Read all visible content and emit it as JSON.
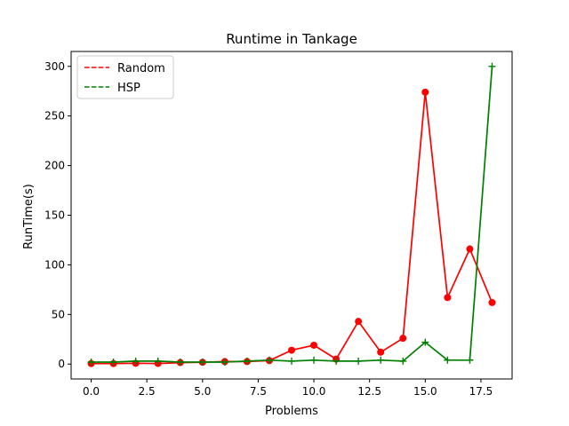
{
  "chart_data": {
    "type": "line",
    "title": "Runtime in Tankage",
    "xlabel": "Problems",
    "ylabel": "RunTime(s)",
    "xlim": [
      -0.9,
      18.9
    ],
    "ylim": [
      -15,
      315
    ],
    "xticks": [
      0.0,
      2.5,
      5.0,
      7.5,
      10.0,
      12.5,
      15.0,
      17.5
    ],
    "xtick_labels": [
      "0.0",
      "2.5",
      "5.0",
      "7.5",
      "10.0",
      "12.5",
      "15.0",
      "17.5"
    ],
    "yticks": [
      0,
      50,
      100,
      150,
      200,
      250,
      300
    ],
    "ytick_labels": [
      "0",
      "50",
      "100",
      "150",
      "200",
      "250",
      "300"
    ],
    "x": [
      0,
      1,
      2,
      3,
      4,
      5,
      6,
      7,
      8,
      9,
      10,
      11,
      12,
      13,
      14,
      15,
      16,
      17,
      18
    ],
    "series": [
      {
        "name": "Random",
        "color": "#ff0000",
        "marker": "circle",
        "legend_style": "dashed",
        "values": [
          0.5,
          0.5,
          0.8,
          0.6,
          1.5,
          1.8,
          2.5,
          2.5,
          3.5,
          14,
          19,
          5,
          43,
          12,
          26,
          274,
          67,
          116,
          62
        ]
      },
      {
        "name": "HSP",
        "color": "#008000",
        "marker": "plus",
        "legend_style": "dashed",
        "values": [
          2,
          2,
          3,
          3,
          2,
          2,
          2,
          3,
          4,
          3,
          4,
          3,
          3,
          4,
          3,
          22,
          4,
          4,
          300
        ]
      }
    ],
    "legend": "top-left",
    "grid": false
  }
}
